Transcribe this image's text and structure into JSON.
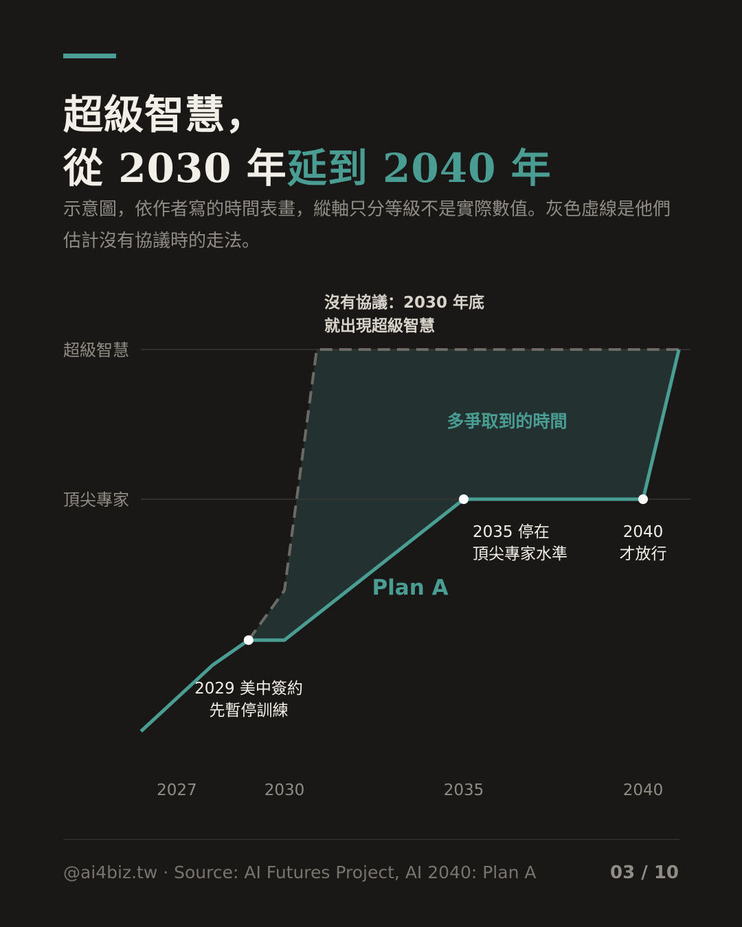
{
  "colors": {
    "background": "#1a1816",
    "accent": "#4a9d93",
    "fill": "#233230",
    "dashed": "#6d6a66",
    "text": "#f2efe8",
    "muted": "#8f8c86"
  },
  "header": {
    "title_line1": "超級智慧，",
    "title_line2_a": "從 2030 年",
    "title_line2_b": "延到 2040 年",
    "subtitle": "示意圖，依作者寫的時間表畫，縱軸只分等級不是實際數值。灰色虛線是他們估計沒有協議時的走法。"
  },
  "chart_data": {
    "type": "line",
    "x_ticks": [
      "2027",
      "2030",
      "2035",
      "2040"
    ],
    "y_levels": [
      "頂尖專家",
      "超級智慧"
    ],
    "series": [
      {
        "name": "Plan A",
        "style": "solid",
        "points": [
          [
            2026,
            0.6
          ],
          [
            2028,
            1.0
          ],
          [
            2029,
            1.15
          ],
          [
            2030,
            1.15
          ],
          [
            2035,
            2.0
          ],
          [
            2040,
            2.0
          ],
          [
            2041,
            3.0
          ]
        ]
      },
      {
        "style": "dashed",
        "points": [
          [
            2029,
            1.15
          ],
          [
            2030,
            1.45
          ],
          [
            2030.9,
            3.0
          ],
          [
            2041,
            3.0
          ]
        ]
      }
    ],
    "markers": [
      {
        "x": 2029,
        "y": 1.15,
        "label_lines": [
          "2029 美中簽約",
          "先暫停訓練"
        ]
      },
      {
        "x": 2035,
        "y": 2.0,
        "label_lines": [
          "2035 停在",
          "頂尖專家水準"
        ]
      },
      {
        "x": 2040,
        "y": 2.0,
        "label_lines": [
          "2040",
          "才放行"
        ]
      }
    ],
    "annotations": {
      "no_deal_lines": [
        "沒有協議：2030 年底",
        "就出現超級智慧"
      ],
      "gained_time": "多爭取到的時間",
      "plan_label": "Plan A"
    },
    "xlim": [
      2026,
      2041.4
    ],
    "ylim": [
      0,
      3
    ]
  },
  "footer": {
    "source": "@ai4biz.tw · Source: AI Futures Project, AI 2040: Plan A",
    "page": "03 / 10"
  }
}
